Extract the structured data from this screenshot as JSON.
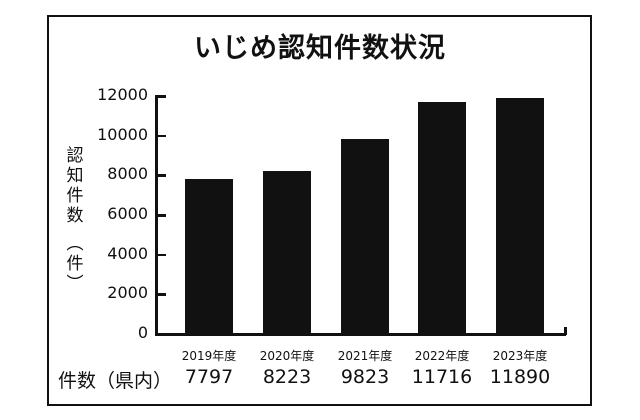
{
  "chart_data": {
    "type": "bar",
    "title": "いじめ認知件数状況",
    "xlabel": "",
    "ylabel": "認知件数（件）",
    "categories": [
      "2019年度",
      "2020年度",
      "2021年度",
      "2022年度",
      "2023年度"
    ],
    "values": [
      7797,
      8223,
      9823,
      11716,
      11890
    ],
    "yticks": [
      "0",
      "2000",
      "4000",
      "6000",
      "8000",
      "10000",
      "12000"
    ],
    "ylim": [
      0,
      12000
    ],
    "grid": false,
    "table_row_label": "件数（県内）",
    "table_values": [
      "7797",
      "8223",
      "9823",
      "11716",
      "11890"
    ],
    "bar_color": "#111111"
  },
  "ylabel_chars": [
    "認",
    "知",
    "件",
    "数",
    "︵",
    "件",
    "︶"
  ]
}
